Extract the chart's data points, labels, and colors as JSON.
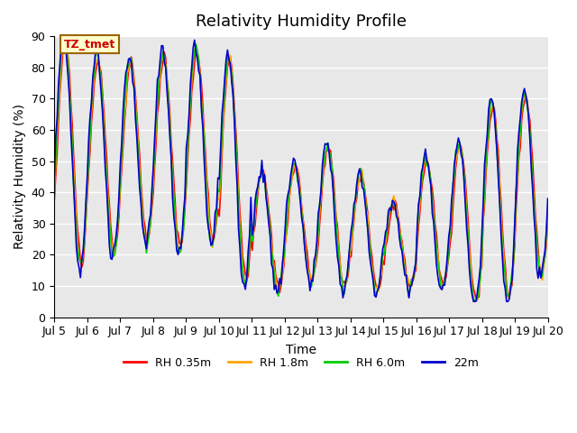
{
  "title": "Relativity Humidity Profile",
  "ylabel": "Relativity Humidity (%)",
  "xlabel": "Time",
  "ylim": [
    0,
    90
  ],
  "yticks": [
    0,
    10,
    20,
    30,
    40,
    50,
    60,
    70,
    80,
    90
  ],
  "xtick_labels": [
    "Jul 5",
    "Jul 6",
    "Jul 7",
    "Jul 8",
    "Jul 9",
    "Jul 10",
    "Jul 11",
    "Jul 12",
    "Jul 13",
    "Jul 14",
    "Jul 15",
    "Jul 16",
    "Jul 17",
    "Jul 18",
    "Jul 19",
    "Jul 20"
  ],
  "colors": {
    "RH 0.35m": "#ff0000",
    "RH 1.8m": "#ffa500",
    "RH 6.0m": "#00cc00",
    "22m": "#0000cd"
  },
  "legend_labels": [
    "RH 0.35m",
    "RH 1.8m",
    "RH 6.0m",
    "22m"
  ],
  "annotation_text": "TZ_tmet",
  "annotation_color": "#cc0000",
  "annotation_bg": "#ffffcc",
  "background_color": "#ffffff",
  "plot_bg_color": "#e8e8e8",
  "grid_color": "#ffffff",
  "title_fontsize": 13,
  "label_fontsize": 10,
  "tick_fontsize": 9
}
